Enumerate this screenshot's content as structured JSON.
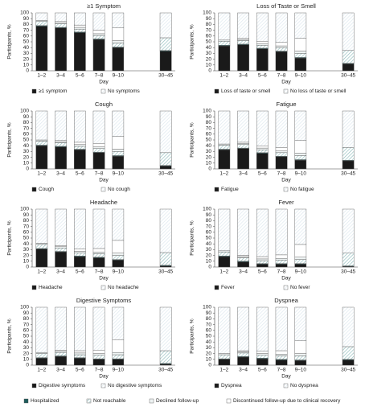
{
  "chart_data": [
    {
      "type": "bar",
      "stacked": true,
      "title": "≥1 Symptom",
      "xlabel": "Day",
      "ylabel": "Participants, %",
      "categories": [
        "1–2",
        "3–4",
        "5–6",
        "7–8",
        "9–10",
        "30–45"
      ],
      "ylim": [
        0,
        100
      ],
      "yticks": [
        0,
        10,
        20,
        30,
        40,
        50,
        60,
        70,
        80,
        90,
        100
      ],
      "series": [
        {
          "name": "≥1 symptom",
          "color": "#1a1a1a",
          "values": [
            77,
            74,
            66,
            54,
            40,
            34
          ]
        },
        {
          "name": "No symptoms",
          "color": "#dbe7ee",
          "pattern": "hatch",
          "values": [
            13,
            15,
            21,
            30,
            26,
            43
          ]
        }
      ]
    },
    {
      "type": "bar",
      "stacked": true,
      "title": "Loss of Taste or Smell",
      "xlabel": "Day",
      "ylabel": "Participants, %",
      "categories": [
        "1–2",
        "3–4",
        "5–6",
        "7–8",
        "9–10",
        "30–45"
      ],
      "ylim": [
        0,
        100
      ],
      "yticks": [
        0,
        10,
        20,
        30,
        40,
        50,
        60,
        70,
        80,
        90,
        100
      ],
      "series": [
        {
          "name": "Loss of taste or smell",
          "color": "#1a1a1a",
          "values": [
            43,
            45,
            38,
            33,
            22,
            12
          ]
        },
        {
          "name": "No loss of taste or smell",
          "color": "#dbe7ee",
          "pattern": "hatch",
          "values": [
            47,
            44,
            49,
            51,
            44,
            65
          ]
        }
      ]
    },
    {
      "type": "bar",
      "stacked": true,
      "title": "Cough",
      "xlabel": "Day",
      "ylabel": "Participants, %",
      "categories": [
        "1–2",
        "3–4",
        "5–6",
        "7–8",
        "9–10",
        "30–45"
      ],
      "ylim": [
        0,
        100
      ],
      "yticks": [
        0,
        10,
        20,
        30,
        40,
        50,
        60,
        70,
        80,
        90,
        100
      ],
      "series": [
        {
          "name": "Cough",
          "color": "#1a1a1a",
          "values": [
            40,
            38,
            33,
            28,
            22,
            5
          ]
        },
        {
          "name": "No cough",
          "color": "#dbe7ee",
          "pattern": "hatch",
          "values": [
            50,
            51,
            54,
            56,
            44,
            72
          ]
        }
      ]
    },
    {
      "type": "bar",
      "stacked": true,
      "title": "Fatigue",
      "xlabel": "Day",
      "ylabel": "Participants, %",
      "categories": [
        "1–2",
        "3–4",
        "5–6",
        "7–8",
        "9–10",
        "30–45"
      ],
      "ylim": [
        0,
        100
      ],
      "yticks": [
        0,
        10,
        20,
        30,
        40,
        50,
        60,
        70,
        80,
        90,
        100
      ],
      "series": [
        {
          "name": "Fatigue",
          "color": "#1a1a1a",
          "values": [
            33,
            35,
            27,
            21,
            15,
            14
          ]
        },
        {
          "name": "No fatigue",
          "color": "#dbe7ee",
          "pattern": "hatch",
          "values": [
            57,
            54,
            60,
            63,
            51,
            63
          ]
        }
      ]
    },
    {
      "type": "bar",
      "stacked": true,
      "title": "Headache",
      "xlabel": "Day",
      "ylabel": "Participants, %",
      "categories": [
        "1–2",
        "3–4",
        "5–6",
        "7–8",
        "9–10",
        "30–45"
      ],
      "ylim": [
        0,
        100
      ],
      "yticks": [
        0,
        10,
        20,
        30,
        40,
        50,
        60,
        70,
        80,
        90,
        100
      ],
      "series": [
        {
          "name": "Headache",
          "color": "#1a1a1a",
          "values": [
            31,
            26,
            18,
            16,
            12,
            2
          ]
        },
        {
          "name": "No headache",
          "color": "#dbe7ee",
          "pattern": "hatch",
          "values": [
            59,
            63,
            69,
            68,
            54,
            75
          ]
        }
      ]
    },
    {
      "type": "bar",
      "stacked": true,
      "title": "Fever",
      "xlabel": "Day",
      "ylabel": "Participants, %",
      "categories": [
        "1–2",
        "3–4",
        "5–6",
        "7–8",
        "9–10",
        "30–45"
      ],
      "ylim": [
        0,
        100
      ],
      "yticks": [
        0,
        10,
        20,
        30,
        40,
        50,
        60,
        70,
        80,
        90,
        100
      ],
      "series": [
        {
          "name": "Fever",
          "color": "#1a1a1a",
          "values": [
            18,
            9,
            5,
            5,
            5,
            1
          ]
        },
        {
          "name": "No fever",
          "color": "#dbe7ee",
          "pattern": "hatch",
          "values": [
            72,
            80,
            82,
            79,
            61,
            76
          ]
        }
      ]
    },
    {
      "type": "bar",
      "stacked": true,
      "title": "Digestive Symptoms",
      "xlabel": "Day",
      "ylabel": "Participants, %",
      "categories": [
        "1–2",
        "3–4",
        "5–6",
        "7–8",
        "9–10",
        "30–45"
      ],
      "ylim": [
        0,
        100
      ],
      "yticks": [
        0,
        10,
        20,
        30,
        40,
        50,
        60,
        70,
        80,
        90,
        100
      ],
      "series": [
        {
          "name": "Digestive symptoms",
          "color": "#1a1a1a",
          "values": [
            12,
            15,
            12,
            10,
            10,
            2
          ]
        },
        {
          "name": "No digestive symptoms",
          "color": "#dbe7ee",
          "pattern": "hatch",
          "values": [
            78,
            74,
            75,
            74,
            56,
            75
          ]
        }
      ]
    },
    {
      "type": "bar",
      "stacked": true,
      "title": "Dyspnea",
      "xlabel": "Day",
      "ylabel": "Participants, %",
      "categories": [
        "1–2",
        "3–4",
        "5–6",
        "7–8",
        "9–10",
        "30–45"
      ],
      "ylim": [
        0,
        100
      ],
      "yticks": [
        0,
        10,
        20,
        30,
        40,
        50,
        60,
        70,
        80,
        90,
        100
      ],
      "series": [
        {
          "name": "Dyspnea",
          "color": "#1a1a1a",
          "values": [
            10,
            14,
            11,
            9,
            8,
            9
          ]
        },
        {
          "name": "No dyspnea",
          "color": "#dbe7ee",
          "pattern": "hatch",
          "values": [
            80,
            75,
            76,
            75,
            58,
            68
          ]
        }
      ]
    }
  ],
  "followup_series": [
    {
      "name": "Hospitalized",
      "color": "#1f5c5c",
      "values": [
        1,
        1,
        1,
        1,
        1,
        1
      ]
    },
    {
      "name": "Not reachable",
      "color": "#8fbcbc",
      "pattern": "hatch",
      "values": [
        7,
        6,
        5,
        6,
        7,
        22
      ]
    },
    {
      "name": "Declined follow-up",
      "color": "#eef3f3",
      "values": [
        2,
        2,
        3,
        3,
        4,
        0
      ]
    },
    {
      "name": "Discontinued follow-up due to clinical recovery",
      "color": "#ffffff",
      "values": [
        0,
        2,
        4,
        6,
        22,
        0
      ]
    }
  ]
}
